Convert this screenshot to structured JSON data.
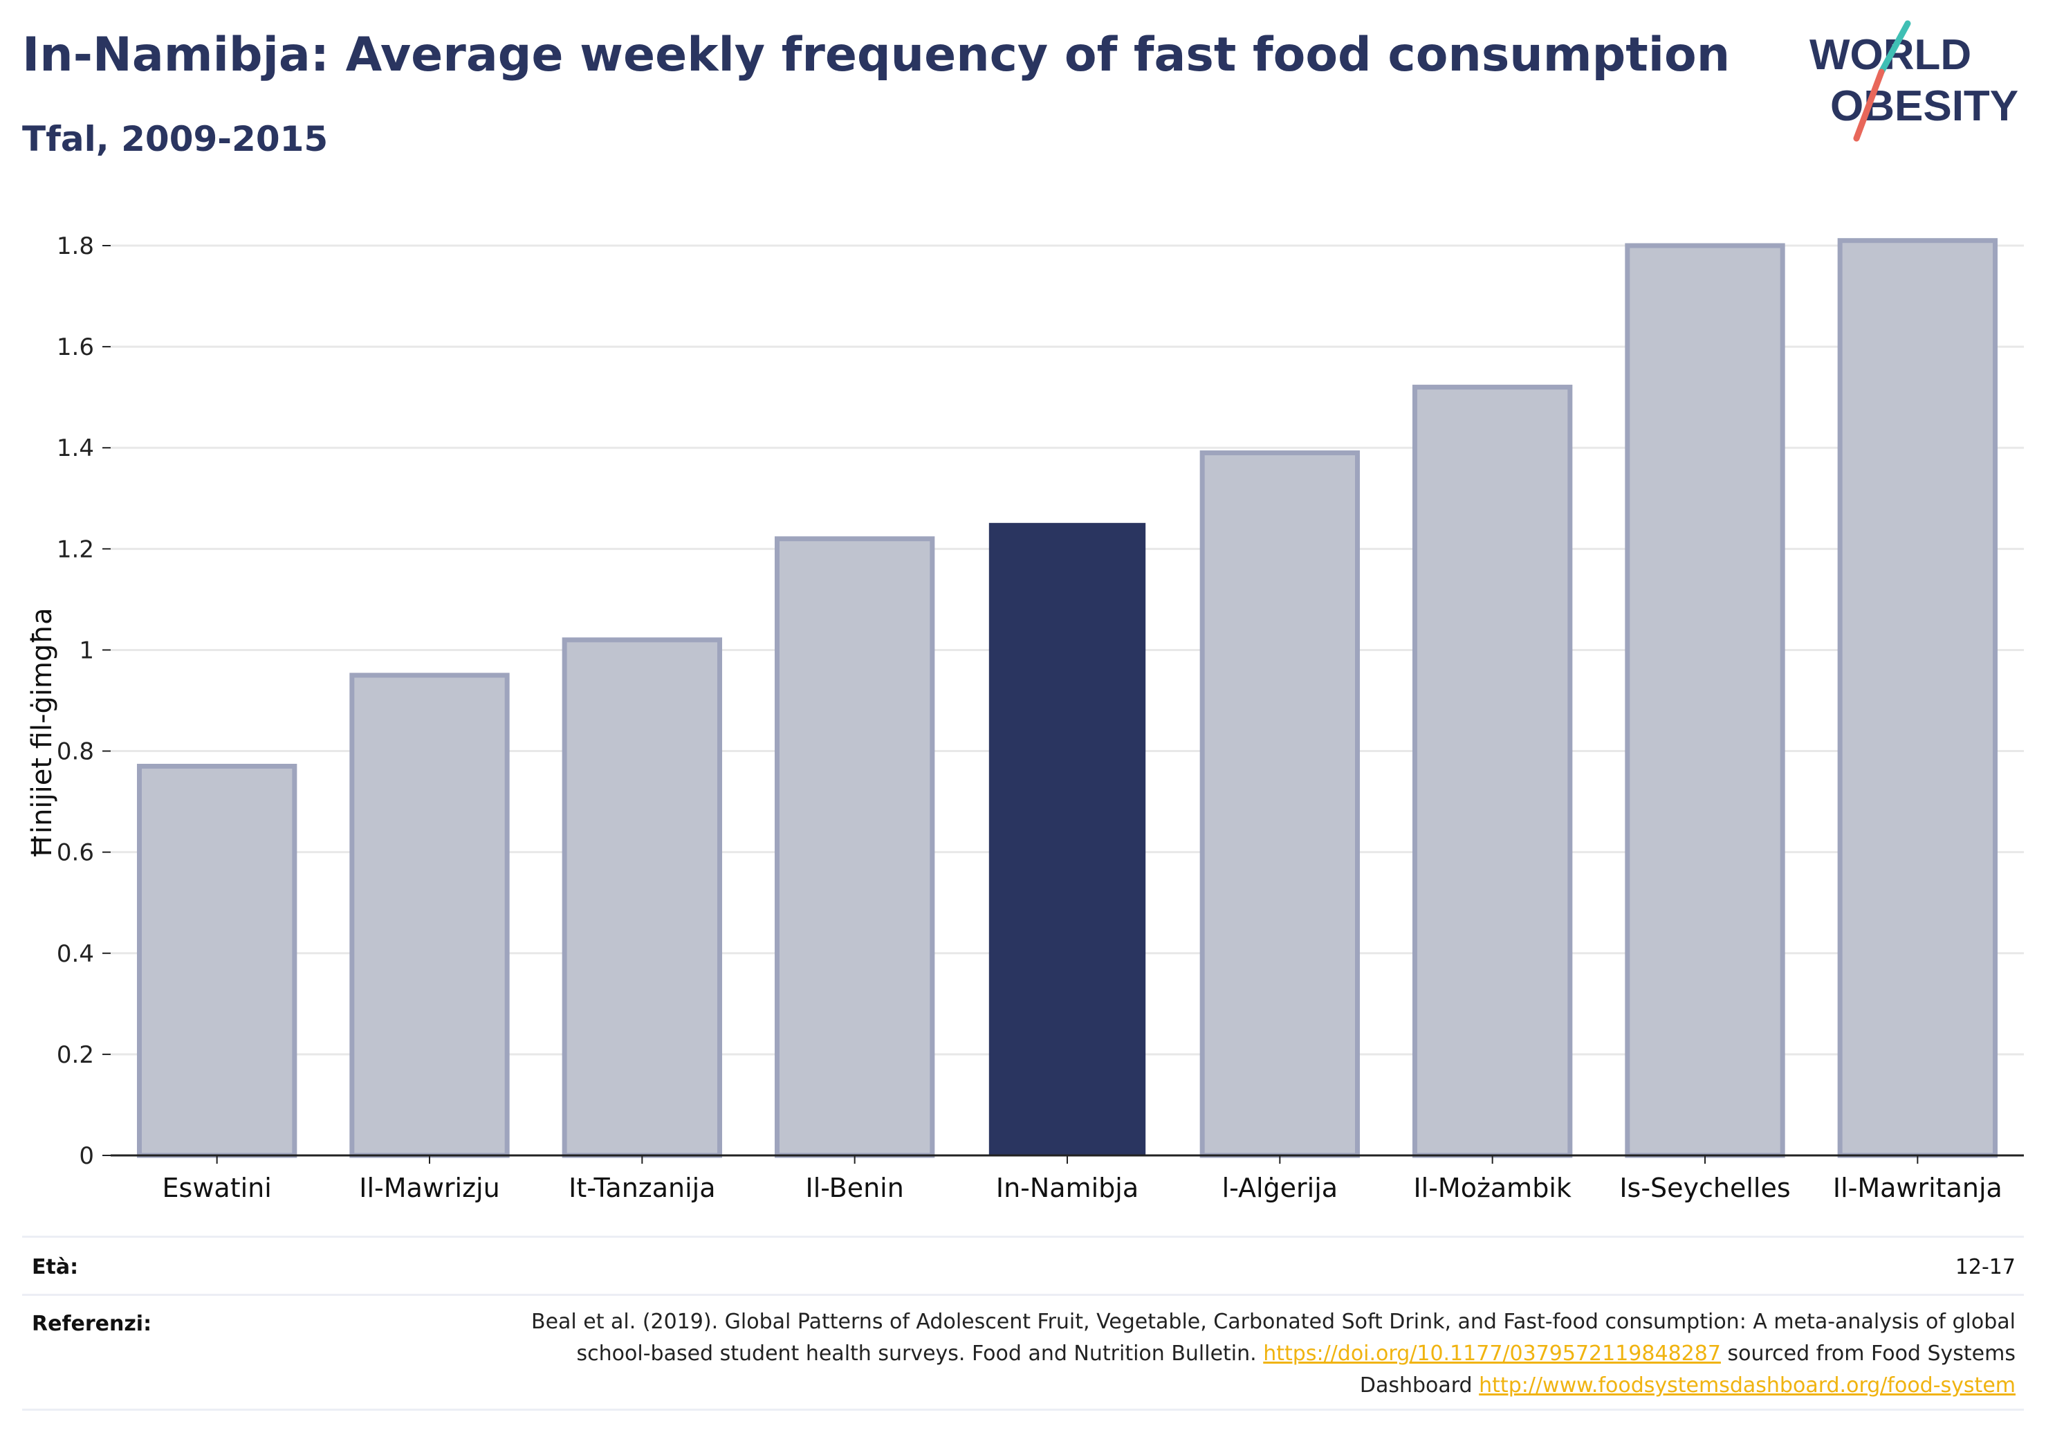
{
  "header": {
    "title": "In-Namibja: Average weekly frequency of fast food consumption",
    "subtitle": "Tfal, 2009-2015"
  },
  "logo": {
    "line1": "WORLD",
    "line2": "OBESITY",
    "colors": {
      "text": "#2a3560",
      "slash_teal": "#3fbfb4",
      "slash_coral": "#e8675a"
    }
  },
  "chart_data": {
    "type": "bar",
    "title": "In-Namibja: Average weekly frequency of fast food consumption",
    "subtitle": "Tfal, 2009-2015",
    "xlabel": "",
    "ylabel": "Ħinijiet fil-ġimgħa",
    "ylim": [
      0,
      1.8
    ],
    "yticks": [
      "0",
      "0.2",
      "0.4",
      "0.6",
      "0.8",
      "1",
      "1.2",
      "1.4",
      "1.6",
      "1.8"
    ],
    "grid": true,
    "categories": [
      "Eswatini",
      "Il-Mawrizju",
      "It-Tanzanija",
      "Il-Benin",
      "In-Namibja",
      "l-Alġerija",
      "Il-Możambik",
      "Is-Seychelles",
      "Il-Mawritanja"
    ],
    "values": [
      0.77,
      0.95,
      1.02,
      1.22,
      1.25,
      1.39,
      1.52,
      1.8,
      1.81
    ],
    "highlight": "In-Namibja",
    "colors": {
      "bar": "#bfc3cf",
      "bar_outline": "#9ea4bd",
      "highlight": "#2a3560",
      "grid": "#e8e8e8",
      "axis": "#222222"
    }
  },
  "footer": {
    "age_label": "Età:",
    "age_value": "12-17",
    "ref_label": "Referenzi:",
    "ref_text_1": "Beal et al. (2019). Global Patterns of Adolescent Fruit, Vegetable, Carbonated Soft Drink, and Fast-food consumption: A meta-analysis of global school-based student health surveys. Food and Nutrition Bulletin.",
    "ref_link_1": "https://doi.org/10.1177/0379572119848287",
    "ref_text_2": "sourced from Food Systems Dashboard",
    "ref_link_2": "http://www.foodsystemsdashboard.org/food-system"
  }
}
